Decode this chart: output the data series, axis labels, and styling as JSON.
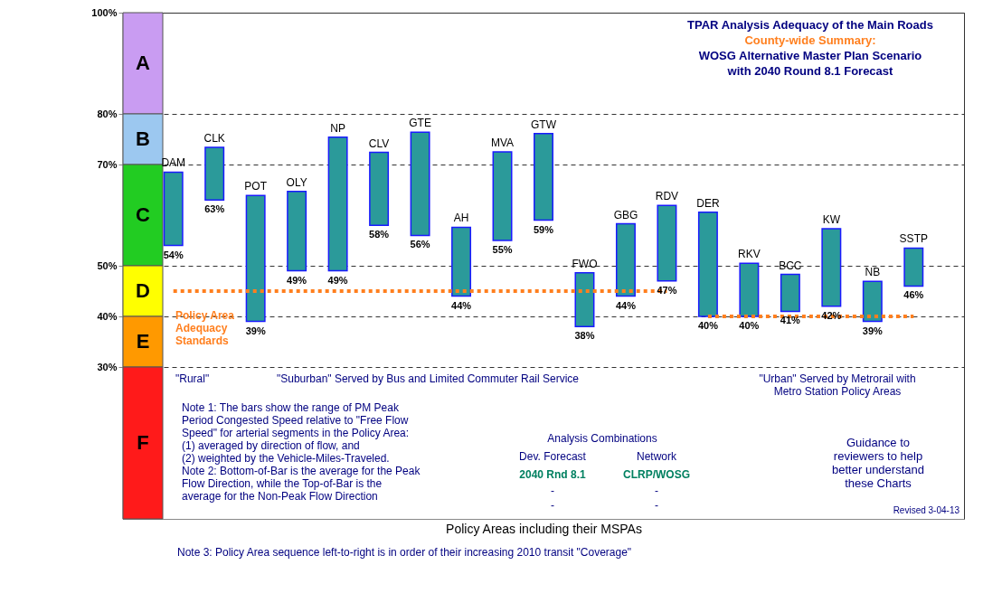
{
  "chart_data": {
    "type": "bar",
    "title": "TPAR Analysis Adequacy of the Main Roads",
    "subtitle": "County-wide Summary:\nWOSG Alternative Master Plan Scenario\nwith  2040 Round 8.1 Forecast",
    "xlabel": "Policy Areas including their MSPAs",
    "categories": [
      "DAM",
      "CLK",
      "POT",
      "OLY",
      "NP",
      "CLV",
      "GTE",
      "AH",
      "MVA",
      "GTW",
      "FWO",
      "GBG",
      "RDV",
      "DER",
      "RKV",
      "BCC",
      "KW",
      "NB",
      "SSTP"
    ],
    "series": [
      {
        "color": "#2b9a9a",
        "base": [
          54,
          63,
          39,
          49,
          49,
          58,
          56,
          44,
          55,
          59,
          38,
          44,
          47,
          40,
          40,
          41,
          42,
          39,
          46
        ],
        "values": [
          14.5,
          10.4,
          24.9,
          15.7,
          26.4,
          14.4,
          20.4,
          13.6,
          17.5,
          17.1,
          10.6,
          14.3,
          14.9,
          20.6,
          10.5,
          7.3,
          15.3,
          7.9,
          7.5
        ]
      },
      {
        "type": "line",
        "color": "#ff7f1e",
        "values": [
          45,
          45,
          45,
          45,
          45,
          45,
          45,
          45,
          45,
          45,
          45,
          45,
          45,
          null,
          null,
          null,
          null,
          null,
          null
        ]
      },
      {
        "type": "line",
        "color": "#ff7f1e",
        "values": [
          null,
          null,
          null,
          null,
          null,
          null,
          null,
          null,
          null,
          null,
          null,
          null,
          null,
          40,
          40,
          40,
          40,
          40,
          40
        ]
      }
    ],
    "line_style": "dotted",
    "ylim": [
      0,
      100
    ],
    "yticks": [
      {
        "value": 30,
        "label": "30%"
      },
      {
        "value": 40,
        "label": "40%"
      },
      {
        "value": 50,
        "label": "50%"
      },
      {
        "value": 70,
        "label": "70%"
      },
      {
        "value": 80,
        "label": "80%"
      },
      {
        "value": 100,
        "label": "100%"
      }
    ],
    "grid": "y",
    "bands": [
      {
        "axis": "y",
        "from": 80,
        "to": 100,
        "label": "A",
        "color": "#c99cf2"
      },
      {
        "axis": "y",
        "from": 70,
        "to": 80,
        "label": "B",
        "color": "#9cc8f0"
      },
      {
        "axis": "y",
        "from": 50,
        "to": 70,
        "label": "C",
        "color": "#22cc22"
      },
      {
        "axis": "y",
        "from": 40,
        "to": 50,
        "label": "D",
        "color": "#ffff00"
      },
      {
        "axis": "y",
        "from": 30,
        "to": 40,
        "label": "E",
        "color": "#ff9900"
      },
      {
        "axis": "y",
        "from": 0,
        "to": 30,
        "label": "F",
        "color": "#ff1a1a"
      }
    ],
    "annotations": [
      "Policy Area\nAdequacy\nStandards",
      "\"Rural\"",
      "\"Suburban\" Served by Bus and Limited Commuter Rail Service",
      "\"Urban\" Served by Metrorail with\nMetro Station Policy Areas",
      "Note 1: The bars show the range of PM Peak\nPeriod Congested Speed relative to \"Free Flow\nSpeed\" for arterial segments in the Policy Area:\n(1) averaged by direction of flow, and\n(2) weighted by the Vehicle-Miles-Traveled.",
      "Note 2: Bottom-of-Bar is the average for the Peak\nFlow Direction, while the Top-of-Bar is the\naverage for the Non-Peak Flow Direction",
      "Analysis Combinations",
      "Dev. Forecast",
      "Network",
      "2040 Rnd 8.1",
      "CLRP/WOSG",
      "-",
      "-",
      "-",
      "-",
      "Guidance to\nreviewers to help\nbetter understand\nthese Charts",
      "Revised 3-04-13",
      "Note 3: Policy Area sequence left-to-right is in order of their increasing 2010 transit \"Coverage\"",
      {
        "text": "54%",
        "x": "DAM",
        "y": 54
      },
      {
        "text": "63%",
        "x": "CLK",
        "y": 63
      },
      {
        "text": "39%",
        "x": "POT",
        "y": 39
      },
      {
        "text": "49%",
        "x": "OLY",
        "y": 49
      },
      {
        "text": "49%",
        "x": "NP",
        "y": 49
      },
      {
        "text": "58%",
        "x": "CLV",
        "y": 58
      },
      {
        "text": "56%",
        "x": "GTE",
        "y": 56
      },
      {
        "text": "44%",
        "x": "AH",
        "y": 44
      },
      {
        "text": "55%",
        "x": "MVA",
        "y": 55
      },
      {
        "text": "59%",
        "x": "GTW",
        "y": 59
      },
      {
        "text": "38%",
        "x": "FWO",
        "y": 38
      },
      {
        "text": "44%",
        "x": "GBG",
        "y": 44
      },
      {
        "text": "47%",
        "x": "RDV",
        "y": 47
      },
      {
        "text": "40%",
        "x": "DER",
        "y": 40
      },
      {
        "text": "40%",
        "x": "RKV",
        "y": 40
      },
      {
        "text": "41%",
        "x": "BCC",
        "y": 41
      },
      {
        "text": "42%",
        "x": "KW",
        "y": 42
      },
      {
        "text": "39%",
        "x": "NB",
        "y": 39
      },
      {
        "text": "46%",
        "x": "SSTP",
        "y": 46
      }
    ]
  }
}
